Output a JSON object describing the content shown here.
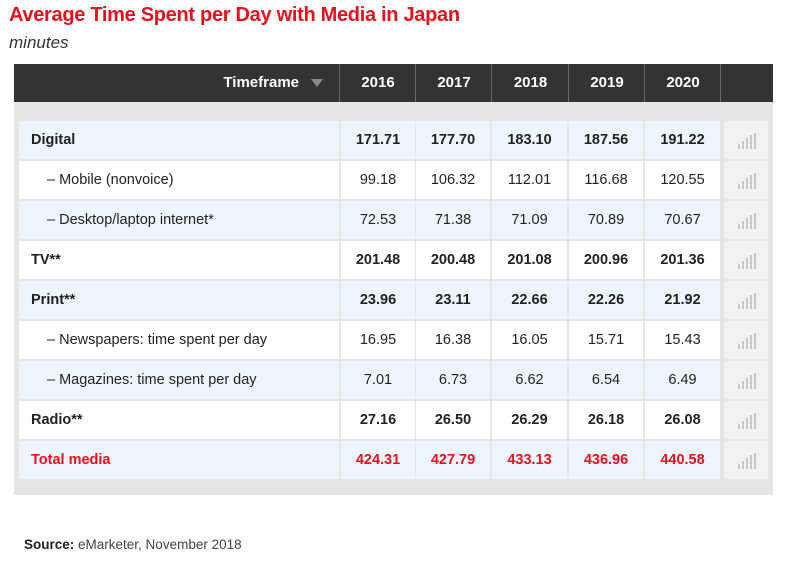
{
  "title": "Average Time Spent per Day with Media in Japan",
  "subtitle": "minutes",
  "chart_data": {
    "type": "table",
    "title": "Average Time Spent per Day with Media in Japan",
    "unit": "minutes",
    "header": {
      "timeframe_label": "Timeframe",
      "years": [
        "2016",
        "2017",
        "2018",
        "2019",
        "2020"
      ]
    },
    "rows": [
      {
        "label": "Digital",
        "bold": true,
        "values": [
          "171.71",
          "177.70",
          "183.10",
          "187.56",
          "191.22"
        ]
      },
      {
        "label": "– Mobile (nonvoice)",
        "bold": false,
        "values": [
          "99.18",
          "106.32",
          "112.01",
          "116.68",
          "120.55"
        ]
      },
      {
        "label": "– Desktop/laptop internet*",
        "bold": false,
        "values": [
          "72.53",
          "71.38",
          "71.09",
          "70.89",
          "70.67"
        ]
      },
      {
        "label": "TV**",
        "bold": true,
        "values": [
          "201.48",
          "200.48",
          "201.08",
          "200.96",
          "201.36"
        ]
      },
      {
        "label": "Print**",
        "bold": true,
        "values": [
          "23.96",
          "23.11",
          "22.66",
          "22.26",
          "21.92"
        ]
      },
      {
        "label": "– Newspapers: time spent per day",
        "bold": false,
        "values": [
          "16.95",
          "16.38",
          "16.05",
          "15.71",
          "15.43"
        ]
      },
      {
        "label": "– Magazines: time spent per day",
        "bold": false,
        "values": [
          "7.01",
          "6.73",
          "6.62",
          "6.54",
          "6.49"
        ]
      },
      {
        "label": "Radio**",
        "bold": true,
        "values": [
          "27.16",
          "26.50",
          "26.29",
          "26.18",
          "26.08"
        ]
      },
      {
        "label": "Total media",
        "bold": true,
        "highlight": true,
        "values": [
          "424.31",
          "427.79",
          "433.13",
          "436.96",
          "440.58"
        ]
      }
    ]
  },
  "colors": {
    "accent": "#e8101c",
    "header_bg": "#333333",
    "row_alt": "#eef6fd",
    "row": "#ffffff"
  },
  "icons": {
    "sort": "sort-down-triangle-icon",
    "row_chart": "bar-chart-icon"
  },
  "source": {
    "label": "Source:",
    "text": "eMarketer, November 2018"
  }
}
